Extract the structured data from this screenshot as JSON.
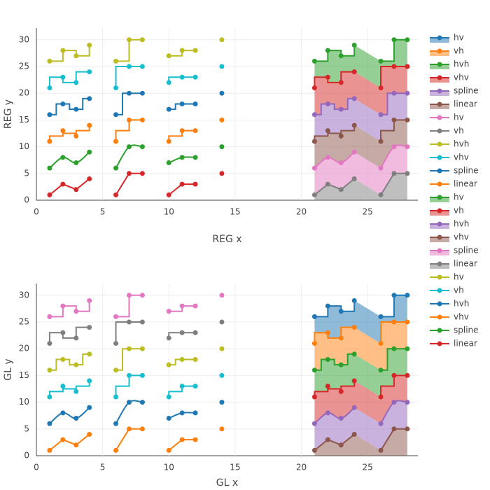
{
  "chart_data": [
    {
      "type": "line",
      "xlabel": "REG x",
      "ylabel": "REG y",
      "xlim": [
        0,
        28.8
      ],
      "ylim": [
        0,
        32.2
      ],
      "xticks": [
        0,
        5,
        10,
        15,
        20,
        25
      ],
      "yticks": [
        0,
        5,
        10,
        15,
        20,
        25,
        30
      ],
      "grid": true,
      "series": [
        {
          "name": "linear",
          "color": "#d62728",
          "x": [
            1,
            2,
            3,
            4,
            5,
            6,
            7,
            8,
            9,
            10,
            11,
            12,
            13,
            14
          ],
          "values": [
            1,
            3,
            2,
            4,
            null,
            1,
            5,
            5,
            null,
            1,
            3,
            3,
            null,
            5
          ]
        },
        {
          "name": "spline",
          "color": "#2ca02c",
          "x": [
            1,
            2,
            3,
            4,
            5,
            6,
            7,
            8,
            9,
            10,
            11,
            12,
            13,
            14
          ],
          "values": [
            6,
            8,
            7,
            9,
            null,
            6,
            10,
            10,
            null,
            7,
            8,
            8,
            null,
            10
          ]
        },
        {
          "name": "vhv",
          "color": "#ff7f0e",
          "x": [
            1,
            2,
            3,
            4,
            5,
            6,
            7,
            8,
            9,
            10,
            11,
            12,
            13,
            14
          ],
          "values": [
            11,
            13,
            12,
            14,
            null,
            11,
            15,
            15,
            null,
            11,
            13,
            13,
            null,
            15
          ]
        },
        {
          "name": "hvh",
          "color": "#1f77b4",
          "x": [
            1,
            2,
            3,
            4,
            5,
            6,
            7,
            8,
            9,
            10,
            11,
            12,
            13,
            14
          ],
          "values": [
            16,
            18,
            17,
            19,
            null,
            16,
            20,
            20,
            null,
            17,
            18,
            18,
            null,
            20
          ]
        },
        {
          "name": "vh",
          "color": "#17becf",
          "x": [
            1,
            2,
            3,
            4,
            5,
            6,
            7,
            8,
            9,
            10,
            11,
            12,
            13,
            14
          ],
          "values": [
            21,
            23,
            22,
            24,
            null,
            21,
            25,
            25,
            null,
            22,
            23,
            23,
            null,
            25
          ]
        },
        {
          "name": "hv",
          "color": "#bcbd22",
          "x": [
            1,
            2,
            3,
            4,
            5,
            6,
            7,
            8,
            9,
            10,
            11,
            12,
            13,
            14
          ],
          "values": [
            26,
            28,
            27,
            29,
            null,
            26,
            30,
            30,
            null,
            27,
            28,
            28,
            null,
            30
          ]
        },
        {
          "name": "linear",
          "color": "#7f7f7f",
          "fill": "tozeroy",
          "x": [
            21,
            22,
            23,
            24,
            25,
            26,
            27,
            28
          ],
          "values": [
            1,
            3,
            2,
            4,
            null,
            1,
            5,
            5
          ]
        },
        {
          "name": "spline",
          "color": "#e377c2",
          "fill": "tonexty",
          "x": [
            21,
            22,
            23,
            24,
            25,
            26,
            27,
            28
          ],
          "values": [
            6,
            8,
            7,
            9,
            null,
            6,
            10,
            10
          ]
        },
        {
          "name": "vhv",
          "color": "#8c564b",
          "fill": "tonexty",
          "x": [
            21,
            22,
            23,
            24,
            25,
            26,
            27,
            28
          ],
          "values": [
            11,
            13,
            12,
            14,
            null,
            11,
            15,
            15
          ]
        },
        {
          "name": "hvh",
          "color": "#9467bd",
          "fill": "tonexty",
          "x": [
            21,
            22,
            23,
            24,
            25,
            26,
            27,
            28
          ],
          "values": [
            16,
            18,
            17,
            19,
            null,
            16,
            20,
            20
          ]
        },
        {
          "name": "vh",
          "color": "#d62728",
          "fill": "tonexty",
          "x": [
            21,
            22,
            23,
            24,
            25,
            26,
            27,
            28
          ],
          "values": [
            21,
            23,
            22,
            24,
            null,
            21,
            25,
            25
          ]
        },
        {
          "name": "hv",
          "color": "#2ca02c",
          "fill": "tonexty",
          "x": [
            21,
            22,
            23,
            24,
            25,
            26,
            27,
            28
          ],
          "values": [
            26,
            28,
            27,
            29,
            null,
            26,
            30,
            30
          ]
        }
      ]
    },
    {
      "type": "line",
      "xlabel": "GL x",
      "ylabel": "GL y",
      "xlim": [
        0,
        28.8
      ],
      "ylim": [
        0,
        32.2
      ],
      "xticks": [
        0,
        5,
        10,
        15,
        20,
        25
      ],
      "yticks": [
        0,
        5,
        10,
        15,
        20,
        25,
        30
      ],
      "grid": true,
      "series": [
        {
          "name": "linear",
          "color": "#ff7f0e",
          "x": [
            1,
            2,
            3,
            4,
            5,
            6,
            7,
            8,
            9,
            10,
            11,
            12,
            13,
            14
          ],
          "values": [
            1,
            3,
            2,
            4,
            null,
            1,
            5,
            5,
            null,
            1,
            3,
            3,
            null,
            5
          ]
        },
        {
          "name": "spline",
          "color": "#1f77b4",
          "x": [
            1,
            2,
            3,
            4,
            5,
            6,
            7,
            8,
            9,
            10,
            11,
            12,
            13,
            14
          ],
          "values": [
            6,
            8,
            7,
            9,
            null,
            6,
            10,
            10,
            null,
            7,
            8,
            8,
            null,
            10
          ]
        },
        {
          "name": "vhv",
          "color": "#17becf",
          "x": [
            1,
            2,
            3,
            4,
            5,
            6,
            7,
            8,
            9,
            10,
            11,
            12,
            13,
            14
          ],
          "values": [
            11,
            13,
            12,
            14,
            null,
            11,
            15,
            15,
            null,
            11,
            13,
            13,
            null,
            15
          ]
        },
        {
          "name": "hvh",
          "color": "#bcbd22",
          "x": [
            1,
            2,
            3,
            4,
            5,
            6,
            7,
            8,
            9,
            10,
            11,
            12,
            13,
            14
          ],
          "values": [
            16,
            18,
            17,
            19,
            null,
            16,
            20,
            20,
            null,
            17,
            18,
            18,
            null,
            20
          ]
        },
        {
          "name": "vh",
          "color": "#7f7f7f",
          "x": [
            1,
            2,
            3,
            4,
            5,
            6,
            7,
            8,
            9,
            10,
            11,
            12,
            13,
            14
          ],
          "values": [
            21,
            23,
            22,
            24,
            null,
            21,
            25,
            25,
            null,
            22,
            23,
            23,
            null,
            25
          ]
        },
        {
          "name": "hv",
          "color": "#e377c2",
          "x": [
            1,
            2,
            3,
            4,
            5,
            6,
            7,
            8,
            9,
            10,
            11,
            12,
            13,
            14
          ],
          "values": [
            26,
            28,
            27,
            29,
            null,
            26,
            30,
            30,
            null,
            27,
            28,
            28,
            null,
            30
          ]
        },
        {
          "name": "linear",
          "color": "#8c564b",
          "fill": "tozeroy",
          "x": [
            21,
            22,
            23,
            24,
            25,
            26,
            27,
            28
          ],
          "values": [
            1,
            3,
            2,
            4,
            null,
            1,
            5,
            5
          ]
        },
        {
          "name": "spline",
          "color": "#9467bd",
          "fill": "tonexty",
          "x": [
            21,
            22,
            23,
            24,
            25,
            26,
            27,
            28
          ],
          "values": [
            6,
            8,
            7,
            9,
            null,
            6,
            10,
            10
          ]
        },
        {
          "name": "vhv",
          "color": "#d62728",
          "fill": "tonexty",
          "x": [
            21,
            22,
            23,
            24,
            25,
            26,
            27,
            28
          ],
          "values": [
            11,
            13,
            12,
            14,
            null,
            11,
            15,
            15
          ]
        },
        {
          "name": "hvh",
          "color": "#2ca02c",
          "fill": "tonexty",
          "x": [
            21,
            22,
            23,
            24,
            25,
            26,
            27,
            28
          ],
          "values": [
            16,
            18,
            17,
            19,
            null,
            16,
            20,
            20
          ]
        },
        {
          "name": "vh",
          "color": "#ff7f0e",
          "fill": "tonexty",
          "x": [
            21,
            22,
            23,
            24,
            25,
            26,
            27,
            28
          ],
          "values": [
            21,
            23,
            22,
            24,
            null,
            21,
            25,
            25
          ]
        },
        {
          "name": "hv",
          "color": "#1f77b4",
          "fill": "tonexty",
          "x": [
            21,
            22,
            23,
            24,
            25,
            26,
            27,
            28
          ],
          "values": [
            26,
            28,
            27,
            29,
            null,
            26,
            30,
            30
          ]
        }
      ]
    }
  ]
}
